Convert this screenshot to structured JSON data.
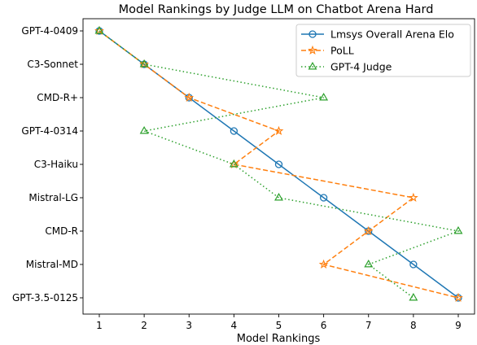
{
  "chart_data": {
    "type": "line",
    "title": "Model Rankings by Judge LLM on Chatbot Arena Hard",
    "xlabel": "Model Rankings",
    "ylabel": "",
    "xlim": [
      1,
      9
    ],
    "x_ticks": [
      1,
      2,
      3,
      4,
      5,
      6,
      7,
      8,
      9
    ],
    "categories": [
      "GPT-4-0409",
      "C3-Sonnet",
      "CMD-R+",
      "GPT-4-0314",
      "C3-Haiku",
      "Mistral-LG",
      "CMD-R",
      "Mistral-MD",
      "GPT-3.5-0125"
    ],
    "grid": false,
    "legend_position": "top-right",
    "series": [
      {
        "name": "Lmsys Overall Arena Elo",
        "color": "#1f77b4",
        "linestyle": "solid",
        "marker": "circle",
        "values": [
          1,
          2,
          3,
          4,
          5,
          6,
          7,
          8,
          9
        ]
      },
      {
        "name": "PoLL",
        "color": "#ff7f0e",
        "linestyle": "dashed",
        "marker": "star",
        "values": [
          1,
          2,
          3,
          5,
          4,
          8,
          7,
          6,
          9
        ]
      },
      {
        "name": "GPT-4 Judge",
        "color": "#2ca02c",
        "linestyle": "dotted",
        "marker": "triangle",
        "values": [
          1,
          2,
          6,
          2,
          4,
          5,
          9,
          7,
          8
        ]
      }
    ]
  }
}
